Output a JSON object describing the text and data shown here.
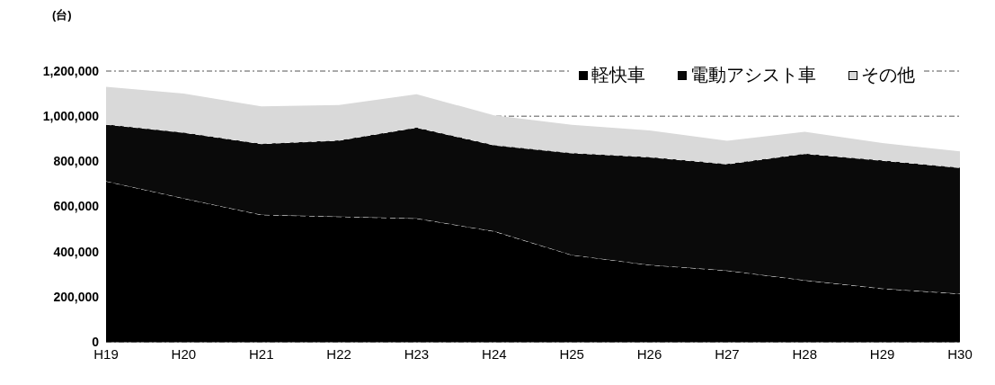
{
  "chart_data": {
    "type": "area",
    "stacked": true,
    "ylabel": "(台)",
    "categories": [
      "H19",
      "H20",
      "H21",
      "H22",
      "H23",
      "H24",
      "H25",
      "H26",
      "H27",
      "H28",
      "H29",
      "H30"
    ],
    "series": [
      {
        "name": "軽快車",
        "color": "#000000",
        "values": [
          712000,
          636000,
          563000,
          555000,
          547000,
          490000,
          385000,
          341000,
          316000,
          273000,
          236000,
          213000
        ]
      },
      {
        "name": "電動アシスト車",
        "color": "#0a0a0a",
        "values": [
          252000,
          292000,
          315000,
          338000,
          403000,
          382000,
          452000,
          478000,
          472000,
          561000,
          568000,
          559000
        ]
      },
      {
        "name": "その他",
        "color": "#d9d9d9",
        "values": [
          166000,
          172000,
          166000,
          157000,
          147000,
          132000,
          125000,
          118000,
          103000,
          97000,
          77000,
          72000
        ]
      }
    ],
    "ylim": [
      0,
      1200000
    ],
    "yticks": [
      0,
      {
        "value": 200000,
        "label": "200,000"
      },
      {
        "value": 400000,
        "label": "400,000"
      },
      {
        "value": 600000,
        "label": "600,000"
      },
      {
        "value": 800000,
        "label": "800,000"
      },
      {
        "value": 1000000,
        "label": "1,000,000"
      },
      {
        "value": 1200000,
        "label": "1,200,000"
      }
    ],
    "grid": "y",
    "legend": "top right"
  }
}
